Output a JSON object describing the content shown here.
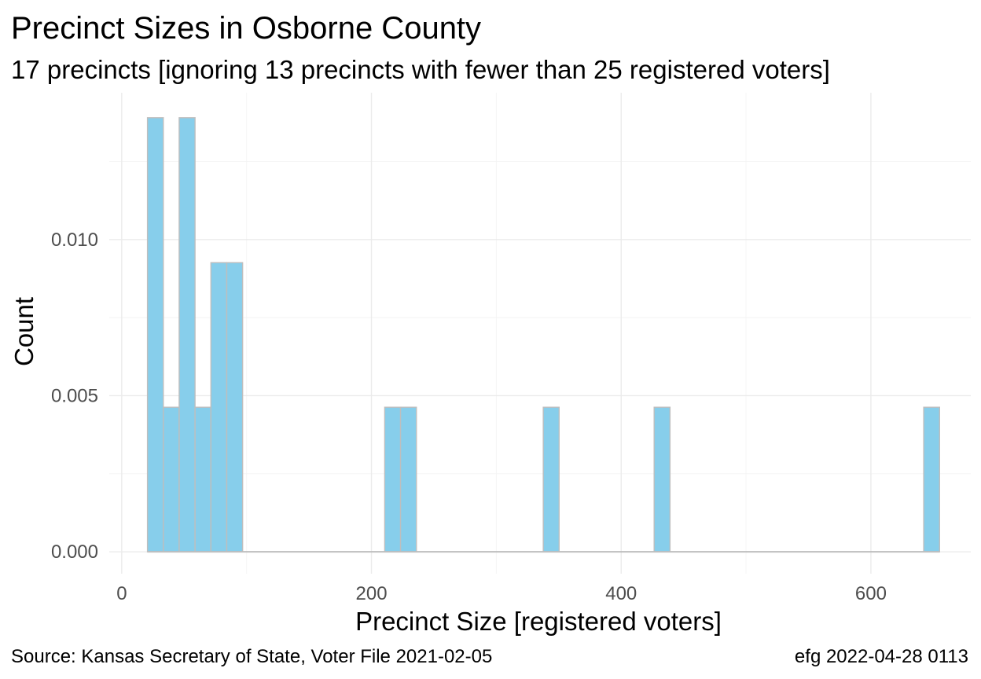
{
  "chart_data": {
    "type": "bar",
    "title": "Precinct Sizes in Osborne County",
    "subtitle": "17 precincts [ignoring 13 precincts with fewer than 25 registered voters]",
    "xlabel": "Precinct Size [registered voters]",
    "ylabel": "Count",
    "xlim": [
      -10,
      680
    ],
    "ylim": [
      -0.0007,
      0.0147
    ],
    "x_ticks": [
      0,
      200,
      400,
      600
    ],
    "x_tick_labels": [
      "0",
      "200",
      "400",
      "600"
    ],
    "y_ticks": [
      0.0,
      0.005,
      0.01
    ],
    "y_tick_labels": [
      "0.000",
      "0.005",
      "0.010"
    ],
    "grid": true,
    "bar_color": "#87ceeb",
    "bar_edge_color": "#bebebe",
    "bin_width": 12.7,
    "bins": [
      {
        "x_start": 20.6,
        "x_end": 33.3,
        "value": 0.0139
      },
      {
        "x_start": 33.3,
        "x_end": 46.0,
        "value": 0.00463
      },
      {
        "x_start": 46.0,
        "x_end": 58.7,
        "value": 0.0139
      },
      {
        "x_start": 58.7,
        "x_end": 71.4,
        "value": 0.00463
      },
      {
        "x_start": 71.4,
        "x_end": 84.1,
        "value": 0.00926
      },
      {
        "x_start": 84.1,
        "x_end": 96.8,
        "value": 0.00926
      },
      {
        "x_start": 210.6,
        "x_end": 223.3,
        "value": 0.00463
      },
      {
        "x_start": 223.3,
        "x_end": 236.0,
        "value": 0.00463
      },
      {
        "x_start": 337.6,
        "x_end": 350.3,
        "value": 0.00463
      },
      {
        "x_start": 426.4,
        "x_end": 439.1,
        "value": 0.00463
      },
      {
        "x_start": 642.3,
        "x_end": 655.0,
        "value": 0.00463
      }
    ]
  },
  "caption": {
    "source": "Source:  Kansas Secretary of State, Voter File  2021-02-05",
    "credit": "efg 2022-04-28 0113"
  }
}
